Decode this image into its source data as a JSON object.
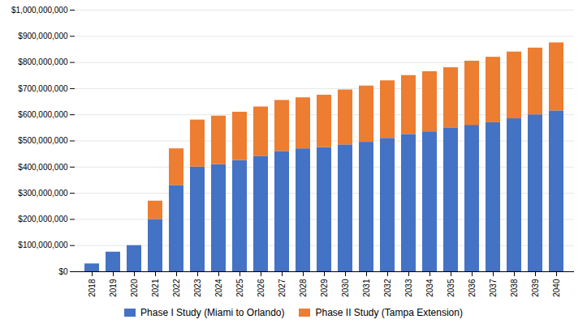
{
  "chart_data": {
    "type": "bar",
    "stacked": true,
    "grid": true,
    "legend": "bottom",
    "categories": [
      "2018",
      "2019",
      "2020",
      "2021",
      "2022",
      "2023",
      "2024",
      "2025",
      "2026",
      "2027",
      "2028",
      "2029",
      "2030",
      "2031",
      "2032",
      "2033",
      "2034",
      "2035",
      "2036",
      "2037",
      "2038",
      "2039",
      "2040"
    ],
    "series": [
      {
        "name": "Phase I Study (Miami to Orlando)",
        "color": "#4472C4",
        "values": [
          30000000,
          75000000,
          100000000,
          200000000,
          330000000,
          400000000,
          410000000,
          425000000,
          440000000,
          460000000,
          470000000,
          475000000,
          485000000,
          495000000,
          510000000,
          525000000,
          535000000,
          550000000,
          560000000,
          570000000,
          585000000,
          600000000,
          615000000
        ]
      },
      {
        "name": "Phase II Study (Tampa Extension)",
        "color": "#ED7D31",
        "values": [
          0,
          0,
          0,
          70000000,
          140000000,
          180000000,
          185000000,
          185000000,
          190000000,
          195000000,
          195000000,
          200000000,
          210000000,
          215000000,
          220000000,
          225000000,
          230000000,
          230000000,
          245000000,
          250000000,
          255000000,
          255000000,
          260000000
        ]
      }
    ],
    "ylim": [
      0,
      1000000000
    ],
    "yticks": [
      {
        "value": 0,
        "label": "$0"
      },
      {
        "value": 100000000,
        "label": "$100,000,000"
      },
      {
        "value": 200000000,
        "label": "$200,000,000"
      },
      {
        "value": 300000000,
        "label": "$300,000,000"
      },
      {
        "value": 400000000,
        "label": "$400,000,000"
      },
      {
        "value": 500000000,
        "label": "$500,000,000"
      },
      {
        "value": 600000000,
        "label": "$600,000,000"
      },
      {
        "value": 700000000,
        "label": "$700,000,000"
      },
      {
        "value": 800000000,
        "label": "$800,000,000"
      },
      {
        "value": 900000000,
        "label": "$900,000,000"
      },
      {
        "value": 1000000000,
        "label": "$1,000,000,000"
      }
    ]
  }
}
